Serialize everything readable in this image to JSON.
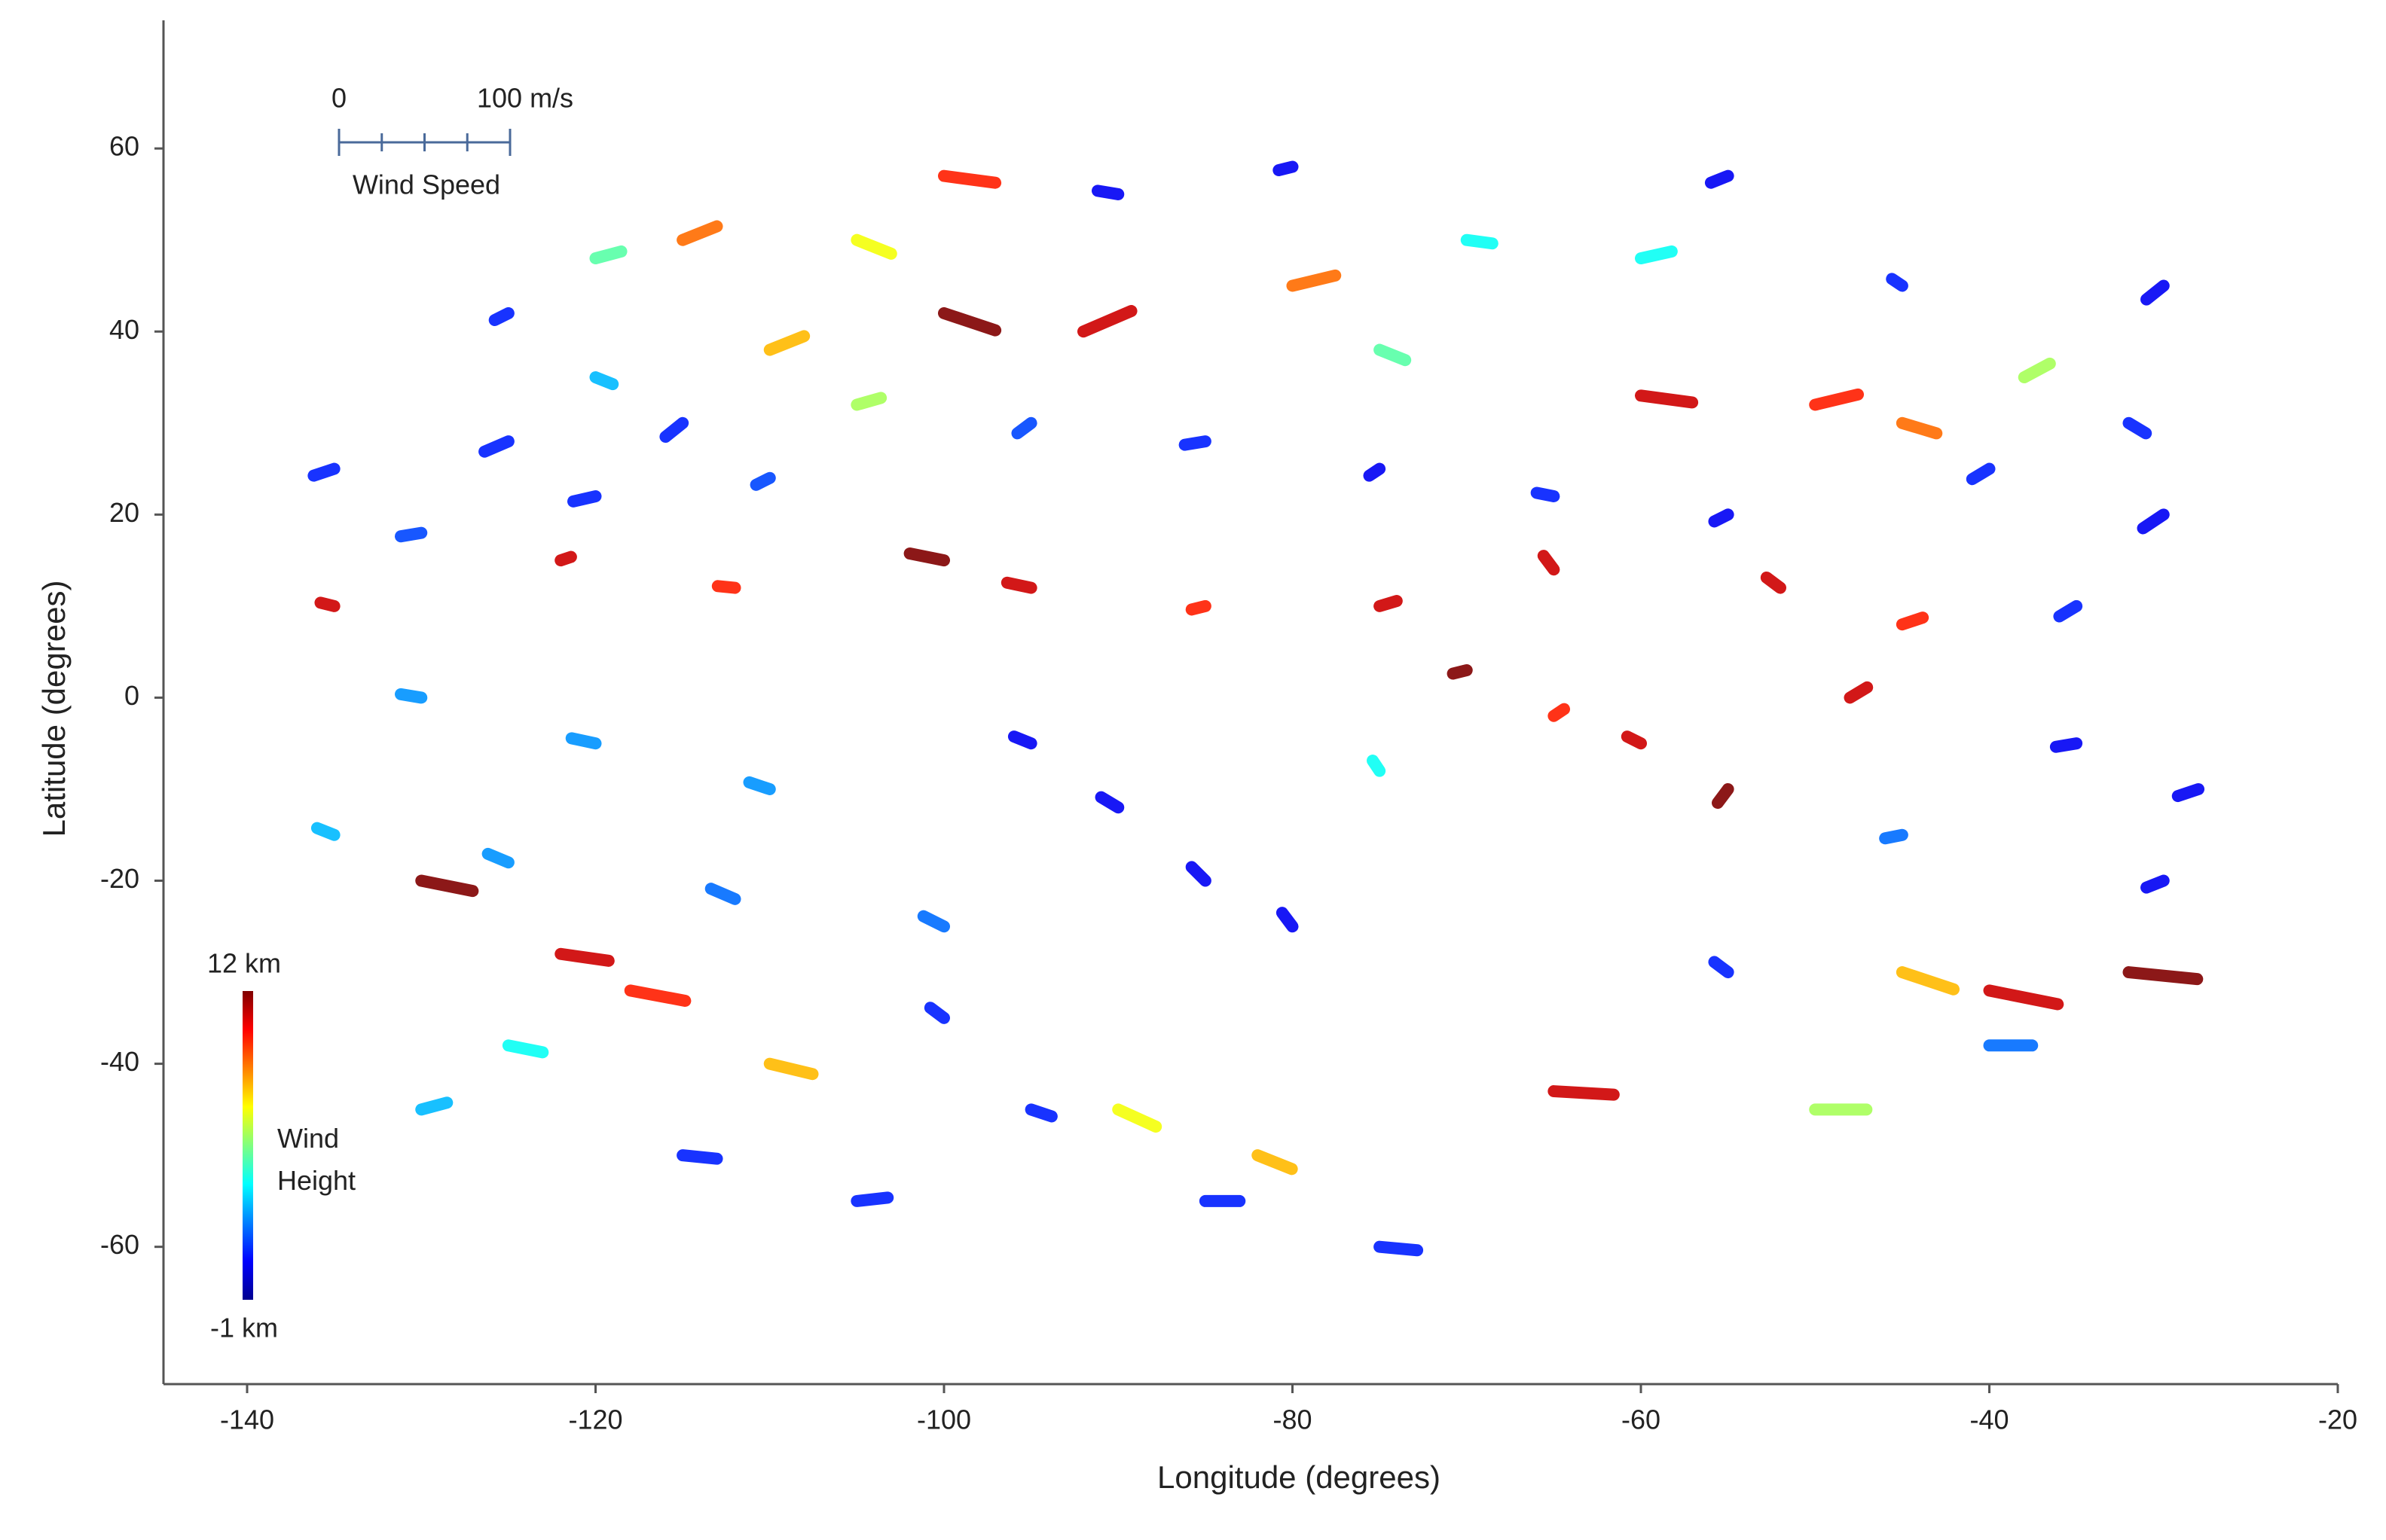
{
  "chart_data": {
    "type": "vector",
    "x_label": "Longitude (degrees)",
    "y_label": "Latitude (degrees)",
    "xlim": [
      -144.8,
      -20
    ],
    "ylim": [
      -75,
      74
    ],
    "xticks": [
      -140,
      -120,
      -100,
      -80,
      -60,
      -40,
      -20
    ],
    "yticks": [
      -60,
      -40,
      -20,
      0,
      20,
      40,
      60
    ],
    "speed_scale": {
      "title": "Wind Speed",
      "ticks": [
        {
          "value": 0,
          "label": "0"
        },
        {
          "value": 100,
          "label": "100 m/s"
        }
      ],
      "minor_ticks": [
        25,
        50,
        75
      ]
    },
    "colorbar": {
      "title": "Wind Height",
      "colormap": "jet",
      "lim": [
        -1,
        12
      ],
      "labels": [
        {
          "value": 12,
          "label": "12 km"
        },
        {
          "value": -1,
          "label": "-1 km"
        }
      ]
    },
    "vectors": {
      "lon": [
        -135,
        -125,
        -115,
        -130,
        -120,
        -110,
        -135,
        -122,
        -112,
        -100,
        -95,
        -85,
        -75,
        -65,
        -52,
        -45,
        -130,
        -120,
        -110,
        -135,
        -125,
        -112,
        -100,
        -95,
        -90,
        -85,
        -80,
        -100,
        -95,
        -85,
        -105,
        -75,
        -130,
        -122,
        -118,
        -125,
        -110,
        -90,
        -82,
        -65,
        -50,
        -40,
        -32,
        -45,
        -40,
        -55,
        -30,
        -35,
        -28,
        -45,
        -60,
        -55,
        -48,
        -35,
        -30,
        -40,
        -55,
        -65,
        -75,
        -85,
        -95,
        -105,
        -100,
        -92,
        -110,
        -120,
        -80,
        -75,
        -60,
        -50,
        -45,
        -38,
        -32,
        -30,
        -45,
        -60,
        -70,
        -90,
        -100,
        -80,
        -55,
        -115,
        -125,
        -120,
        -105,
        -70,
        -65,
        -75,
        -130,
        -115
      ],
      "lat": [
        25,
        28,
        30,
        18,
        22,
        24,
        10,
        15,
        12,
        15,
        12,
        10,
        10,
        14,
        12,
        8,
        0,
        -5,
        -10,
        -15,
        -18,
        -22,
        -25,
        -5,
        -12,
        -20,
        -25,
        -35,
        -45,
        -55,
        -55,
        -60,
        -20,
        -28,
        -32,
        -38,
        -40,
        -45,
        -50,
        -43,
        -45,
        -32,
        -30,
        -30,
        -38,
        -30,
        -20,
        -5,
        -10,
        -15,
        -5,
        -10,
        0,
        10,
        20,
        25,
        20,
        22,
        25,
        28,
        30,
        32,
        42,
        40,
        38,
        35,
        45,
        38,
        33,
        32,
        30,
        35,
        30,
        45,
        45,
        48,
        50,
        55,
        57,
        58,
        57,
        50,
        42,
        48,
        50,
        3,
        -2,
        -8,
        -45,
        -50
      ],
      "u": [
        -12,
        -14,
        -10,
        -12,
        -13,
        -8,
        -8,
        6,
        -10,
        -20,
        -14,
        -8,
        10,
        -6,
        -8,
        12,
        -12,
        -14,
        -12,
        -10,
        -12,
        -14,
        -12,
        -10,
        -10,
        -8,
        -6,
        -8,
        12,
        20,
        18,
        22,
        30,
        28,
        32,
        20,
        25,
        22,
        20,
        35,
        30,
        40,
        40,
        30,
        25,
        -8,
        -10,
        -12,
        -12,
        -10,
        -8,
        -6,
        10,
        -10,
        -12,
        -10,
        -8,
        -10,
        -6,
        -12,
        -8,
        14,
        30,
        28,
        20,
        10,
        25,
        15,
        30,
        25,
        20,
        15,
        10,
        -10,
        -6,
        18,
        15,
        -12,
        30,
        -8,
        -10,
        20,
        -8,
        15,
        20,
        -8,
        6,
        -4,
        15,
        20
      ],
      "v": [
        -4,
        -6,
        -8,
        -2,
        -3,
        -4,
        2,
        2,
        1,
        4,
        3,
        -2,
        3,
        8,
        6,
        4,
        2,
        3,
        4,
        4,
        5,
        6,
        6,
        4,
        6,
        8,
        8,
        6,
        -4,
        0,
        2,
        -2,
        -6,
        -4,
        -6,
        -4,
        -6,
        -10,
        -8,
        -2,
        0,
        -8,
        -4,
        -10,
        0,
        6,
        -4,
        -2,
        -4,
        -2,
        4,
        -8,
        6,
        -6,
        -8,
        -6,
        -4,
        2,
        -4,
        -2,
        -6,
        4,
        -10,
        12,
        8,
        -4,
        6,
        -6,
        -4,
        6,
        -6,
        8,
        -6,
        -8,
        4,
        4,
        -2,
        2,
        -4,
        -2,
        -4,
        8,
        -4,
        4,
        -8,
        -2,
        4,
        6,
        4,
        -2
      ],
      "height": [
        1,
        1,
        1,
        1.5,
        1,
        1.5,
        11,
        11,
        10,
        12,
        11,
        10,
        11,
        11,
        11,
        10,
        2.5,
        2.5,
        2.5,
        3,
        2.5,
        2,
        2,
        0.5,
        0.5,
        0.5,
        0.5,
        1,
        1,
        1,
        1,
        1,
        12,
        11,
        10,
        4,
        8,
        7,
        8,
        11,
        6,
        11,
        12,
        8,
        2,
        1,
        0.5,
        0.5,
        0.5,
        2,
        11,
        12,
        11,
        1,
        0.5,
        1,
        0.5,
        1,
        0.5,
        1,
        1.5,
        6,
        12,
        11,
        8,
        3,
        9,
        5,
        11,
        10,
        9,
        6,
        1,
        0.5,
        1,
        4,
        4,
        0.5,
        10,
        0.5,
        0.5,
        9,
        1,
        5,
        7,
        12,
        10,
        4,
        3,
        1
      ]
    }
  }
}
